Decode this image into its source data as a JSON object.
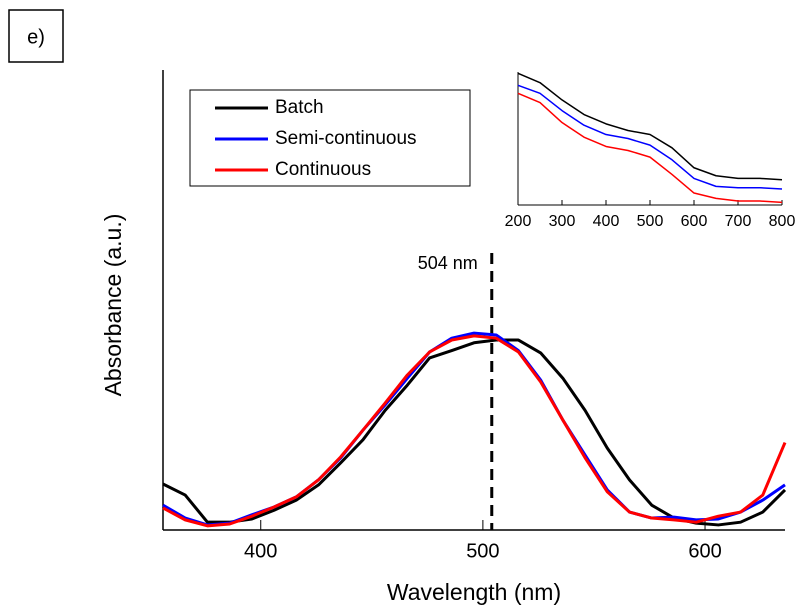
{
  "panel_label": "e)",
  "chart_data": [
    {
      "type": "line",
      "x_label": "Wavelength (nm)",
      "y_label": "Absorbance (a.u.)",
      "x": [
        356,
        366,
        376,
        386,
        396,
        406,
        416,
        426,
        436,
        446,
        456,
        466,
        476,
        486,
        496,
        506,
        516,
        526,
        536,
        546,
        556,
        566,
        576,
        586,
        596,
        606,
        616,
        626,
        636
      ],
      "series": [
        {
          "name": "Batch",
          "color": "#000000",
          "values": [
            0.1,
            0.076,
            0.017,
            0.017,
            0.024,
            0.043,
            0.065,
            0.098,
            0.146,
            0.196,
            0.26,
            0.315,
            0.374,
            0.39,
            0.407,
            0.413,
            0.413,
            0.385,
            0.33,
            0.26,
            0.178,
            0.109,
            0.054,
            0.026,
            0.015,
            0.011,
            0.017,
            0.039,
            0.087
          ]
        },
        {
          "name": "Semi-continuous",
          "color": "#0000ff",
          "values": [
            0.054,
            0.026,
            0.011,
            0.015,
            0.033,
            0.05,
            0.072,
            0.109,
            0.157,
            0.217,
            0.272,
            0.33,
            0.387,
            0.417,
            0.428,
            0.424,
            0.39,
            0.326,
            0.239,
            0.163,
            0.087,
            0.039,
            0.026,
            0.028,
            0.022,
            0.024,
            0.039,
            0.065,
            0.098
          ]
        },
        {
          "name": "Continuous",
          "color": "#ff0000",
          "values": [
            0.048,
            0.022,
            0.009,
            0.013,
            0.03,
            0.05,
            0.072,
            0.109,
            0.159,
            0.217,
            0.276,
            0.337,
            0.387,
            0.413,
            0.422,
            0.417,
            0.387,
            0.322,
            0.239,
            0.157,
            0.083,
            0.039,
            0.026,
            0.022,
            0.017,
            0.03,
            0.039,
            0.076,
            0.19
          ]
        }
      ],
      "xlim": [
        356,
        636
      ],
      "xticks": [
        400,
        500,
        600
      ],
      "ylim": [
        0,
        1
      ],
      "legend": "upper left",
      "annotations": [
        {
          "value": 504,
          "label": "504 nm"
        }
      ]
    },
    {
      "type": "line",
      "x": [
        200,
        250,
        300,
        350,
        400,
        450,
        500,
        550,
        600,
        650,
        700,
        750,
        800
      ],
      "series": [
        {
          "color": "#000000",
          "values": [
            0.99,
            0.92,
            0.79,
            0.68,
            0.61,
            0.56,
            0.53,
            0.43,
            0.28,
            0.22,
            0.2,
            0.2,
            0.19
          ]
        },
        {
          "color": "#0000ff",
          "values": [
            0.9,
            0.84,
            0.71,
            0.6,
            0.53,
            0.5,
            0.45,
            0.34,
            0.2,
            0.14,
            0.13,
            0.13,
            0.12
          ]
        },
        {
          "color": "#ff0000",
          "values": [
            0.84,
            0.77,
            0.62,
            0.51,
            0.44,
            0.41,
            0.36,
            0.23,
            0.09,
            0.05,
            0.03,
            0.03,
            0.02
          ]
        }
      ],
      "xlim": [
        200,
        800
      ],
      "xticks": [
        200,
        300,
        400,
        500,
        600,
        700,
        800
      ],
      "ylim": [
        0,
        1
      ]
    }
  ]
}
